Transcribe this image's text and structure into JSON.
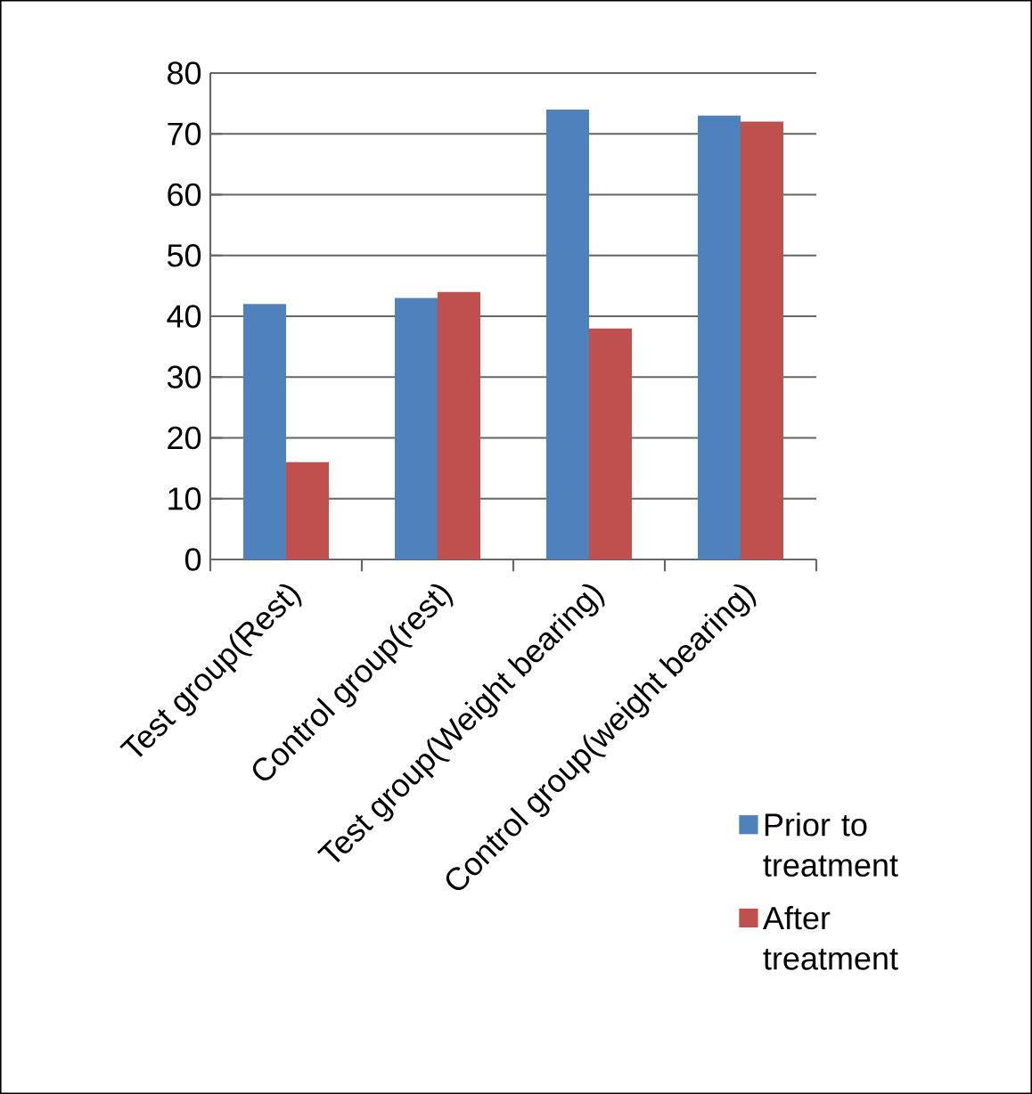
{
  "chart_data": {
    "type": "bar",
    "categories": [
      "Test group(Rest)",
      "Control group(rest)",
      "Test group(Weight bearing)",
      "Control group(weight bearing)"
    ],
    "series": [
      {
        "name": "Prior to treatment",
        "color": "#4f81bd",
        "values": [
          42,
          43,
          74,
          73
        ]
      },
      {
        "name": "After treatment",
        "color": "#c0504d",
        "values": [
          16,
          44,
          38,
          72
        ]
      }
    ],
    "ylim": [
      0,
      80
    ],
    "yticks": [
      0,
      10,
      20,
      30,
      40,
      50,
      60,
      70,
      80
    ],
    "grid": "y",
    "legend": "bottom right"
  }
}
